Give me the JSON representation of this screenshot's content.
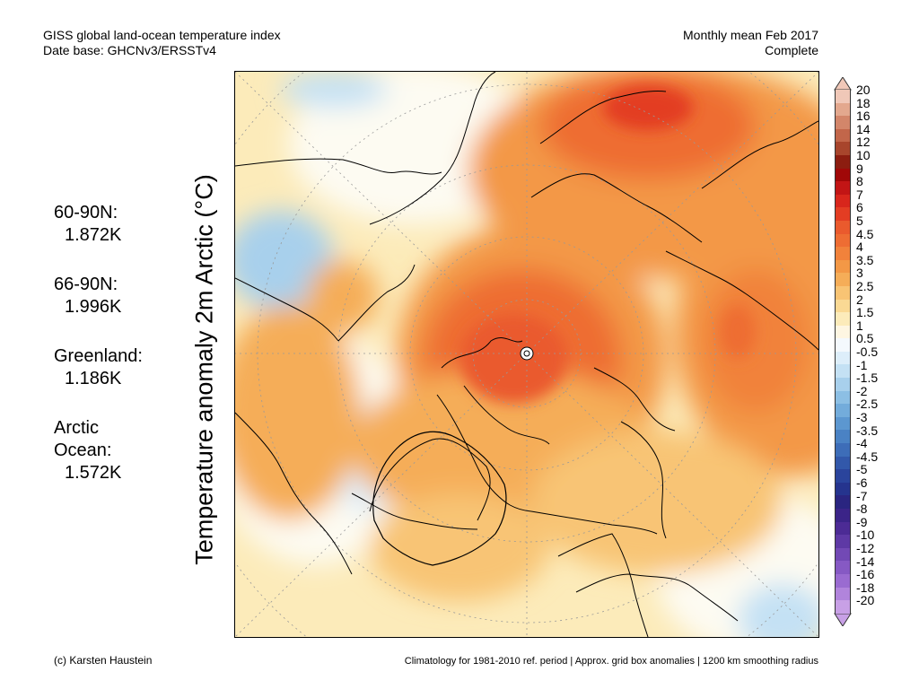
{
  "header": {
    "title_line1": "GISS global land-ocean temperature index",
    "title_line2": "Date base: GHCNv3/ERSSTv4",
    "period_line1": "Monthly mean Feb 2017",
    "period_line2": "Complete"
  },
  "stats": [
    {
      "label": "60-90N:",
      "value": "1.872K"
    },
    {
      "label": "66-90N:",
      "value": "1.996K"
    },
    {
      "label": "Greenland:",
      "value": "1.186K"
    },
    {
      "label": "Arctic Ocean:",
      "value": "1.572K"
    }
  ],
  "y_axis_label": "Temperature anomaly 2m Arctic (°C)",
  "legend": {
    "labels": [
      "20",
      "18",
      "16",
      "14",
      "12",
      "10",
      "9",
      "8",
      "7",
      "6",
      "5",
      "4.5",
      "4",
      "3.5",
      "3",
      "2.5",
      "2",
      "1.5",
      "1",
      "0.5",
      "-0.5",
      "-1",
      "-1.5",
      "-2",
      "-2.5",
      "-3",
      "-3.5",
      "-4",
      "-4.5",
      "-5",
      "-6",
      "-7",
      "-8",
      "-9",
      "-10",
      "-12",
      "-14",
      "-16",
      "-18",
      "-20"
    ],
    "colors": [
      "#f0c8b8",
      "#e3a88e",
      "#d3866a",
      "#c2664a",
      "#a8452c",
      "#8c1d10",
      "#a00808",
      "#c21515",
      "#d8261c",
      "#e33d23",
      "#ea5a2d",
      "#ee6d33",
      "#f1823b",
      "#f39846",
      "#f5ad58",
      "#f8c474",
      "#fad994",
      "#fcebba",
      "#fef6e2",
      "#f4f9fd",
      "#ddeefa",
      "#c4e1f4",
      "#a8d0ec",
      "#8cbfe4",
      "#73acdb",
      "#5c97d0",
      "#4a82c4",
      "#3d6db8",
      "#3258aa",
      "#2a449c",
      "#25348e",
      "#2a2580",
      "#3b2488",
      "#4c2b95",
      "#5e39a5",
      "#7249b5",
      "#8659c4",
      "#9a6bd1",
      "#b184dc",
      "#c8a0e6"
    ]
  },
  "footer": {
    "credit": "(c) Karsten Haustein",
    "note": "Climatology for 1981-2010 ref. period | Approx. grid box anomalies | 1200 km smoothing radius"
  }
}
